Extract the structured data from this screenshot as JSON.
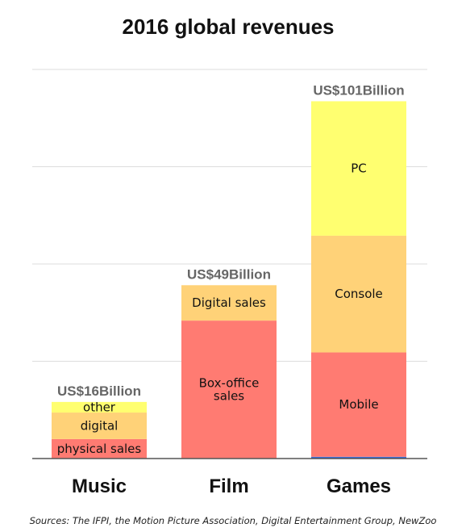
{
  "chart_data": {
    "type": "bar",
    "stacked": true,
    "title": "2016 global revenues",
    "categories": [
      "Music",
      "Film",
      "Games"
    ],
    "totals": [
      "US$16Billion",
      "US$49Billion",
      "US$101Billion"
    ],
    "stacks": [
      {
        "category": "Music",
        "segments": [
          {
            "label": "physical sales",
            "value": 5.5
          },
          {
            "label": "digital",
            "value": 7.5
          },
          {
            "label": "other",
            "value": 3
          }
        ]
      },
      {
        "category": "Film",
        "segments": [
          {
            "label": "Box-office sales",
            "label_lines": [
              "Box-office",
              "sales"
            ],
            "value": 39
          },
          {
            "label": "Digital sales",
            "value": 10
          }
        ]
      },
      {
        "category": "Games",
        "segments": [
          {
            "label": "",
            "value": 0.5
          },
          {
            "label": "Mobile",
            "value": 29.5
          },
          {
            "label": "Console",
            "value": 33
          },
          {
            "label": "PC",
            "value": 38
          }
        ]
      }
    ],
    "ylim": [
      0,
      110
    ],
    "grid": true,
    "legend": "none",
    "colors": {
      "physical": "#ff7b72",
      "digital": "#ffd278",
      "other": "#ffff70",
      "thin": "#3a6fd8",
      "grid": "#dddddd",
      "baseline": "#555555"
    },
    "source": "Sources: The IFPI, the Motion Picture Association, Digital Entertainment Group, NewZoo"
  }
}
